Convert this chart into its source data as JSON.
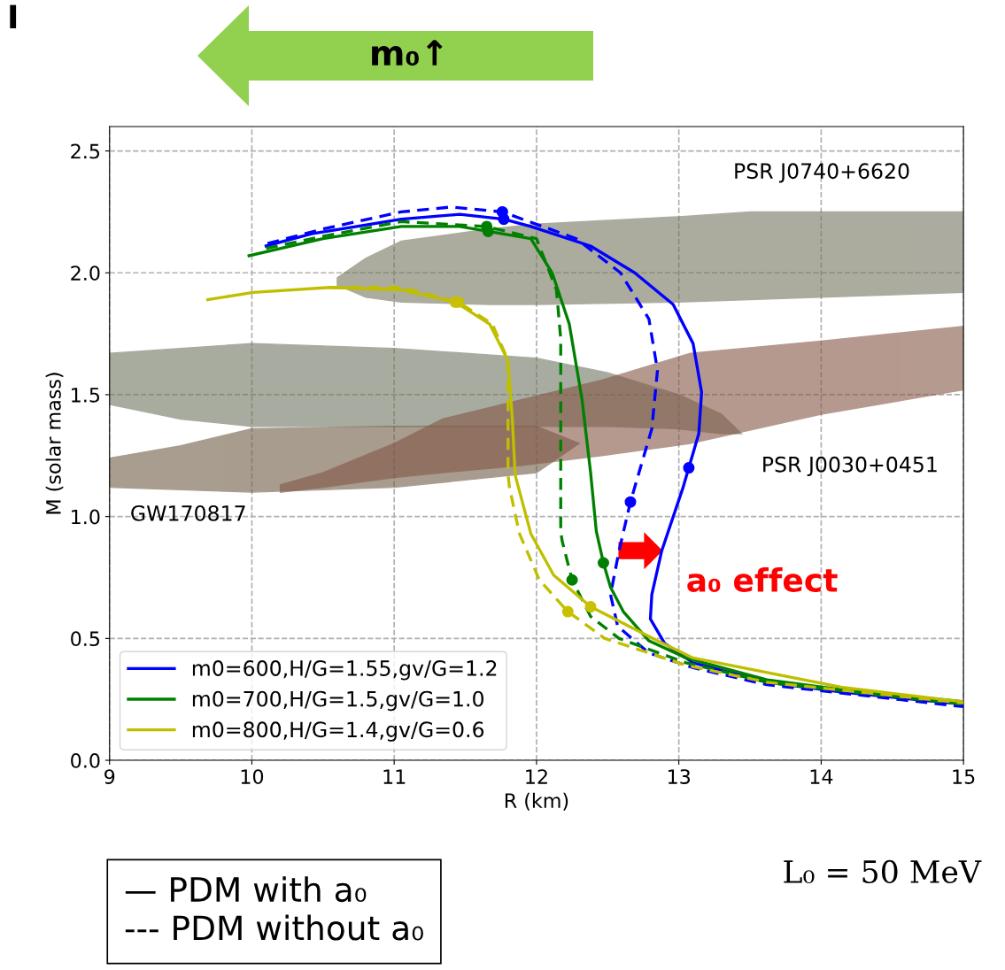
{
  "chart_data": {
    "type": "line",
    "xlabel": "R (km)",
    "ylabel": "M (solar mass)",
    "xlim": [
      9,
      15
    ],
    "ylim": [
      0,
      2.6
    ],
    "xticks": [
      9,
      10,
      11,
      12,
      13,
      14,
      15
    ],
    "yticks": [
      {
        "value": 0,
        "label": "0.0"
      },
      0.5,
      {
        "value": 1,
        "label": "1.0"
      },
      1.5,
      {
        "value": 2,
        "label": "2.0"
      },
      2.5
    ],
    "grid": true,
    "legend": "bottom left",
    "series": [
      {
        "type": "area",
        "color": "#75745f",
        "x": [
          10.6,
          10.8,
          11.05,
          11.67,
          12.0,
          13.0,
          13.5,
          14.0,
          15.0,
          15.0,
          14.0,
          13.5,
          13.0,
          12.0,
          11.67,
          11.05,
          10.8,
          10.6
        ],
        "values": [
          1.98,
          2.06,
          2.13,
          2.18,
          2.2,
          2.23,
          2.25,
          2.25,
          2.25,
          1.92,
          1.9,
          1.89,
          1.88,
          1.87,
          1.87,
          1.88,
          1.9,
          1.95
        ]
      },
      {
        "type": "area",
        "color": "#6f7560",
        "x": [
          9.0,
          9.5,
          10.0,
          11.0,
          12.0,
          12.5,
          13.0,
          13.3,
          13.44,
          13.3,
          13.0,
          12.5,
          12.0,
          11.0,
          10.0,
          9.5,
          9.0
        ],
        "values": [
          1.67,
          1.69,
          1.71,
          1.69,
          1.65,
          1.59,
          1.5,
          1.42,
          1.34,
          1.34,
          1.36,
          1.37,
          1.37,
          1.37,
          1.37,
          1.4,
          1.46
        ]
      },
      {
        "type": "area",
        "color": "#6e5c44",
        "x": [
          9.0,
          9.5,
          10.0,
          11.0,
          12.0,
          12.3,
          12.0,
          11.0,
          10.0,
          9.5,
          9.0
        ],
        "values": [
          1.24,
          1.29,
          1.36,
          1.37,
          1.37,
          1.3,
          1.18,
          1.12,
          1.1,
          1.11,
          1.12
        ]
      },
      {
        "type": "area",
        "color": "#845746",
        "x": [
          10.2,
          10.5,
          11.0,
          11.34,
          11.9,
          12.46,
          13.08,
          14.0,
          15.0,
          15.0,
          14.0,
          13.08,
          12.46,
          11.9,
          11.34,
          11.0,
          10.5,
          10.2
        ],
        "values": [
          1.13,
          1.18,
          1.3,
          1.4,
          1.48,
          1.56,
          1.67,
          1.72,
          1.78,
          1.52,
          1.42,
          1.3,
          1.25,
          1.21,
          1.18,
          1.16,
          1.12,
          1.1
        ]
      },
      {
        "name": "m0=600,H/G=1.55,gv/G=1.2",
        "color": "#0000ff",
        "line_style": "solid",
        "x": [
          10.1,
          10.42,
          11.05,
          11.46,
          11.77,
          11.96,
          12.38,
          12.69,
          12.96,
          13.1,
          13.16,
          13.14,
          13.07,
          13.03,
          12.88,
          12.81,
          12.8,
          12.9,
          13.1,
          13.62,
          14.14,
          15.0
        ],
        "values": [
          2.11,
          2.16,
          2.22,
          2.24,
          2.22,
          2.19,
          2.11,
          2.0,
          1.87,
          1.71,
          1.51,
          1.34,
          1.2,
          1.12,
          0.86,
          0.68,
          0.58,
          0.48,
          0.4,
          0.32,
          0.28,
          0.23
        ]
      },
      {
        "color": "#0000ff",
        "line_style": "dashed",
        "x": [
          10.11,
          10.5,
          11.05,
          11.4,
          11.76,
          12.28,
          12.59,
          12.79,
          12.85,
          12.81,
          12.66,
          12.58,
          12.52,
          12.57,
          12.79,
          13.1,
          13.62,
          15.0
        ],
        "values": [
          2.12,
          2.18,
          2.25,
          2.27,
          2.25,
          2.14,
          2.0,
          1.81,
          1.6,
          1.36,
          1.06,
          0.86,
          0.68,
          0.55,
          0.44,
          0.38,
          0.31,
          0.22
        ]
      },
      {
        "name": "m0=700,H/G=1.5,gv/G=1.0",
        "color": "#008000",
        "line_style": "solid",
        "x": [
          9.98,
          10.5,
          11.05,
          11.46,
          11.66,
          11.96,
          12.11,
          12.23,
          12.32,
          12.38,
          12.42,
          12.47,
          12.52,
          12.61,
          12.79,
          13.05,
          13.62,
          14.14,
          15.0
        ],
        "values": [
          2.07,
          2.14,
          2.19,
          2.19,
          2.17,
          2.14,
          2.0,
          1.79,
          1.48,
          1.18,
          0.94,
          0.81,
          0.71,
          0.61,
          0.49,
          0.42,
          0.33,
          0.29,
          0.24
        ]
      },
      {
        "color": "#008000",
        "line_style": "dashed",
        "x": [
          10.1,
          10.5,
          11.05,
          11.65,
          12.0,
          12.14,
          12.17,
          12.17,
          12.18,
          12.25,
          12.38,
          12.58,
          13.05,
          13.62,
          15.0
        ],
        "values": [
          2.1,
          2.15,
          2.21,
          2.19,
          2.14,
          1.93,
          1.73,
          0.94,
          0.9,
          0.74,
          0.59,
          0.5,
          0.4,
          0.32,
          0.23
        ]
      },
      {
        "name": "m0=800,H/G=1.4,gv/G=0.6",
        "color": "#bfbf00",
        "line_style": "solid",
        "x": [
          9.69,
          10.01,
          10.55,
          11.05,
          11.43,
          11.67,
          11.8,
          11.83,
          11.85,
          11.96,
          12.12,
          12.38,
          12.85,
          13.1,
          13.62,
          14.14,
          15.0
        ],
        "values": [
          1.89,
          1.92,
          1.94,
          1.93,
          1.88,
          1.79,
          1.64,
          1.4,
          1.17,
          0.93,
          0.76,
          0.63,
          0.49,
          0.42,
          0.36,
          0.3,
          0.24
        ]
      },
      {
        "color": "#bfbf00",
        "line_style": "dashed",
        "x": [
          10.55,
          11.05,
          11.45,
          11.69,
          11.8,
          11.8,
          11.81,
          11.88,
          12.02,
          12.22,
          12.48,
          13.05,
          13.62,
          15.0
        ],
        "values": [
          1.94,
          1.94,
          1.88,
          1.79,
          1.64,
          1.17,
          1.12,
          0.93,
          0.74,
          0.61,
          0.5,
          0.39,
          0.32,
          0.235
        ]
      },
      {
        "type": "scatter",
        "marker": "circle",
        "x": [
          11.77,
          13.07,
          11.76,
          12.66,
          11.66,
          12.47,
          11.65,
          12.25,
          11.43,
          12.38,
          11.45,
          12.22
        ],
        "values": [
          2.22,
          1.2,
          2.25,
          1.06,
          2.17,
          0.81,
          2.19,
          0.74,
          1.88,
          0.63,
          1.88,
          0.61
        ],
        "colors": [
          "#0000ff",
          "#0000ff",
          "#0000ff",
          "#0000ff",
          "#008000",
          "#008000",
          "#008000",
          "#008000",
          "#c8c000",
          "#c8c000",
          "#c8c000",
          "#c8c000"
        ]
      }
    ],
    "annotations": [
      "PSR J0740+6620",
      "GW170817",
      "PSR J0030+0451",
      {
        "text": "a₀ effect",
        "x": 12.88,
        "y": 0.86
      },
      "m₀↑",
      "— PDM with a₀\n--- PDM without a₀",
      "L₀ = 50 MeV",
      "I"
    ]
  }
}
